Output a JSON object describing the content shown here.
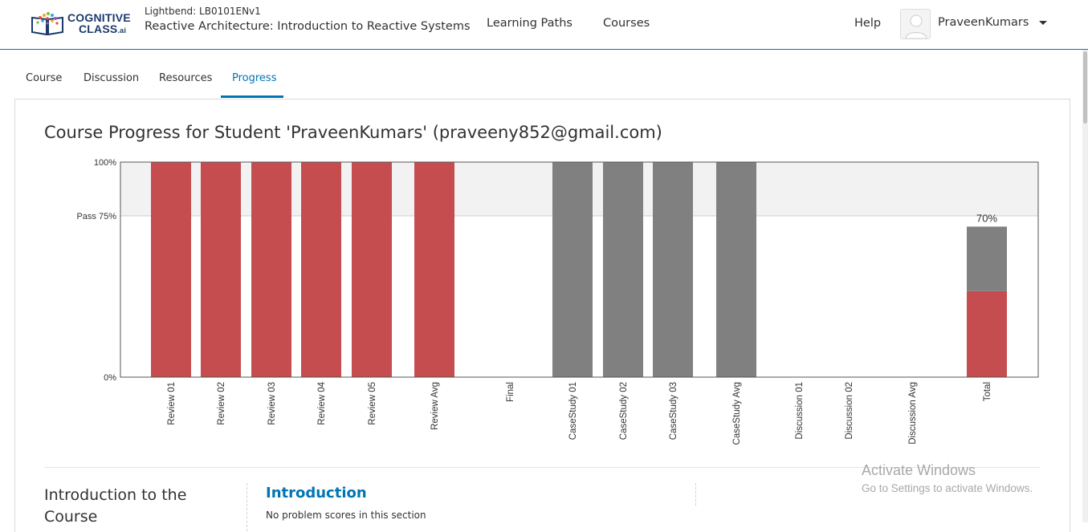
{
  "header": {
    "course_org": "Lightbend: LB0101ENv1",
    "course_name": "Reactive Architecture: Introduction to Reactive Systems",
    "logo_line1": "COGNITIVE",
    "logo_line2": "CLASS",
    "logo_suffix": ".ai",
    "nav": {
      "learning_paths": "Learning Paths",
      "courses": "Courses",
      "help": "Help"
    },
    "user": {
      "name": "PraveenKumars",
      "avatar_icon": "user-avatar-icon",
      "caret_icon": "caret-down-icon"
    }
  },
  "tabs": [
    {
      "label": "Course",
      "active": false
    },
    {
      "label": "Discussion",
      "active": false
    },
    {
      "label": "Resources",
      "active": false
    },
    {
      "label": "Progress",
      "active": true
    }
  ],
  "main": {
    "title": "Course Progress for Student 'PraveenKumars' (praveeny852@gmail.com)"
  },
  "chart_data": {
    "type": "bar",
    "categories": [
      "Review 01",
      "Review 02",
      "Review 03",
      "Review 04",
      "Review 05",
      "Review Avg",
      "Final",
      "CaseStudy 01",
      "CaseStudy 02",
      "CaseStudy 03",
      "CaseStudy Avg",
      "Discussion 01",
      "Discussion 02",
      "Discussion Avg",
      "Total"
    ],
    "series": [
      {
        "values": [
          100,
          100,
          100,
          100,
          100,
          100,
          0,
          0,
          0,
          0,
          0,
          0,
          0,
          0,
          40
        ],
        "color": "#c54c4f"
      },
      {
        "values": [
          0,
          0,
          0,
          0,
          0,
          0,
          0,
          100,
          100,
          100,
          100,
          0,
          0,
          0,
          30
        ],
        "color": "#808080"
      }
    ],
    "stacked": true,
    "y_ticks": [
      {
        "value": 100,
        "label": "100%"
      },
      {
        "value": 75,
        "label": "Pass 75%"
      },
      {
        "value": 0,
        "label": "0%"
      }
    ],
    "ylim": [
      0,
      100
    ],
    "pass_threshold": 75,
    "total_label": "70%",
    "pass_band_color": "#f2f2f2"
  },
  "section": {
    "chapter": "Introduction to the Course",
    "name": "Introduction",
    "note": "No problem scores in this section"
  },
  "watermark": {
    "line1": "Activate Windows",
    "line2": "Go to Settings to activate Windows."
  }
}
